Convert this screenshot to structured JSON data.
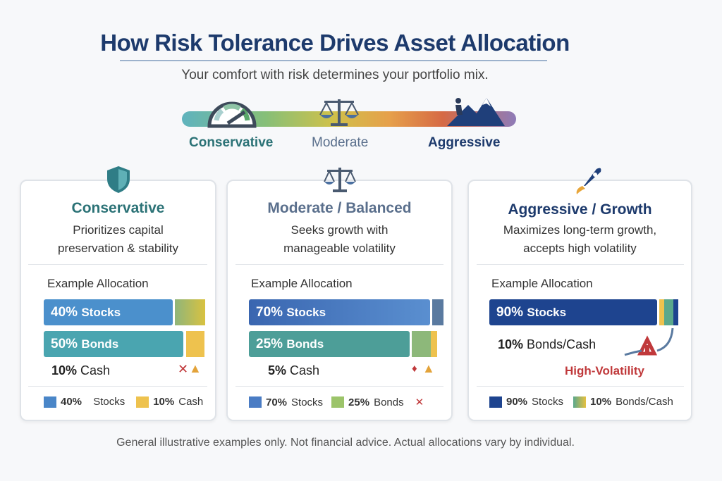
{
  "title": "How Risk Tolerance Drives Asset Allocation",
  "subtitle": "Your comfort with risk determines your portfolio mix.",
  "spectrum": {
    "labels": [
      "Conservative",
      "Moderate",
      "Aggressive"
    ],
    "icons": [
      "gauge-icon",
      "balance-scale-icon",
      "mountain-climber-icon"
    ]
  },
  "cards": [
    {
      "icon": "shield-icon",
      "title": "Conservative",
      "desc": [
        "Prioritizes capital",
        "preservation & stability"
      ],
      "example": "Example Allocation",
      "bars": [
        {
          "pct": "40%",
          "label": "Stocks",
          "value": 40
        },
        {
          "pct": "50%",
          "label": "Bonds",
          "value": 50
        }
      ],
      "extra": {
        "pct": "10%",
        "label": "Cash"
      },
      "legend": [
        {
          "pct": "40%",
          "label": "Stocks",
          "color": "#4a86c8"
        },
        {
          "pct": "10%",
          "label": "Cash",
          "color": "#eec24e"
        }
      ]
    },
    {
      "icon": "balance-scale-icon",
      "title": "Moderate / Balanced",
      "desc": [
        "Seeks growth with",
        "manageable volatility"
      ],
      "example": "Example Allocation",
      "bars": [
        {
          "pct": "70%",
          "label": "Stocks",
          "value": 70
        },
        {
          "pct": "25%",
          "label": "Bonds",
          "value": 25
        }
      ],
      "extra": {
        "pct": "5%",
        "label": "Cash"
      },
      "legend": [
        {
          "pct": "70%",
          "label": "Stocks",
          "color": "#4a7cc4"
        },
        {
          "pct": "25%",
          "label": "Bonds",
          "color": "#9cc46a"
        }
      ]
    },
    {
      "icon": "rocket-icon",
      "title": "Aggressive / Growth",
      "desc": [
        "Maximizes long-term growth,",
        "accepts high volatility"
      ],
      "example": "Example Allocation",
      "bars": [
        {
          "pct": "90%",
          "label": "Stocks",
          "value": 90
        }
      ],
      "extra": {
        "pct": "10%",
        "label": "Bonds/Cash"
      },
      "warning": "High-Volatility",
      "legend": [
        {
          "pct": "90%",
          "label": "Stocks",
          "color": "#1e448f"
        },
        {
          "pct": "10%",
          "label": "Bonds/Cash",
          "color": "#5aa88c"
        }
      ]
    }
  ],
  "colors": {
    "title": "#1d3a6c",
    "conservative": "#2b7276",
    "moderate": "#5a6f8c",
    "aggressive": "#1d3a6c",
    "warning": "#c0393b"
  },
  "footer": "General illustrative examples only. Not financial advice. Actual allocations vary by individual."
}
